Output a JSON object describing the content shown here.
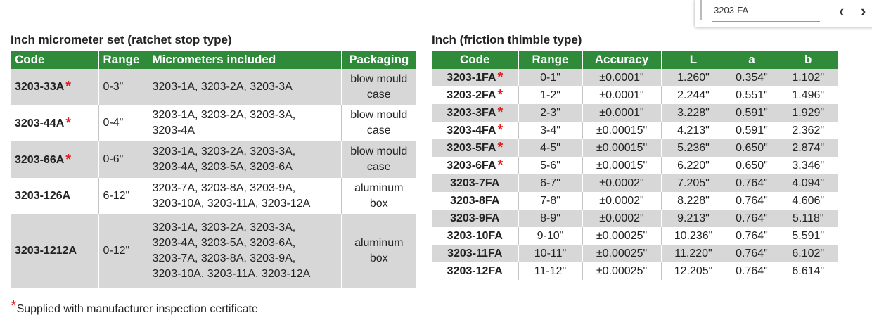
{
  "search": {
    "query": "3203-FA",
    "prev": "‹",
    "next": "›"
  },
  "left_table": {
    "title": "Inch micrometer set (ratchet stop type)",
    "columns": [
      "Code",
      "Range",
      "Micrometers included",
      "Packaging"
    ],
    "rows": [
      {
        "code": "3203-33A",
        "mark": "*",
        "range": "0-3\"",
        "included": [
          "3203-1A, 3203-2A, 3203-3A"
        ],
        "packaging": [
          "blow mould",
          "case"
        ]
      },
      {
        "code": "3203-44A",
        "mark": "*",
        "range": "0-4\"",
        "included": [
          "3203-1A, 3203-2A, 3203-3A,",
          "3203-4A"
        ],
        "packaging": [
          "blow mould",
          "case"
        ]
      },
      {
        "code": "3203-66A",
        "mark": "*",
        "range": "0-6\"",
        "included": [
          "3203-1A, 3203-2A, 3203-3A,",
          "3203-4A, 3203-5A, 3203-6A"
        ],
        "packaging": [
          "blow mould",
          "case"
        ]
      },
      {
        "code": "3203-126A",
        "range": "6-12\"",
        "included": [
          "3203-7A, 3203-8A, 3203-9A,",
          "3203-10A, 3203-11A, 3203-12A"
        ],
        "packaging": [
          "aluminum",
          "box"
        ]
      },
      {
        "code": "3203-1212A",
        "range": "0-12\"",
        "included": [
          "3203-1A, 3203-2A, 3203-3A,",
          "3203-4A, 3203-5A, 3203-6A,",
          "3203-7A, 3203-8A, 3203-9A,",
          "3203-10A, 3203-11A, 3203-12A"
        ],
        "packaging": [
          "aluminum",
          "box"
        ]
      }
    ]
  },
  "right_table": {
    "title": "Inch (friction thimble type)",
    "columns": [
      "Code",
      "Range",
      "Accuracy",
      "L",
      "a",
      "b"
    ],
    "rows": [
      {
        "code": "3203-1FA",
        "mark": "*",
        "range": "0-1\"",
        "accuracy": "±0.0001\"",
        "L": "1.260\"",
        "a": "0.354\"",
        "b": "1.102\""
      },
      {
        "code": "3203-2FA",
        "mark": "*",
        "range": "1-2\"",
        "accuracy": "±0.0001\"",
        "L": "2.244\"",
        "a": "0.551\"",
        "b": "1.496\""
      },
      {
        "code": "3203-3FA",
        "mark": "*",
        "range": "2-3\"",
        "accuracy": "±0.0001\"",
        "L": "3.228\"",
        "a": "0.591\"",
        "b": "1.929\""
      },
      {
        "code": "3203-4FA",
        "mark": "*",
        "range": "3-4\"",
        "accuracy": "±0.00015\"",
        "L": "4.213\"",
        "a": "0.591\"",
        "b": "2.362\""
      },
      {
        "code": "3203-5FA",
        "mark": "*",
        "range": "4-5\"",
        "accuracy": "±0.00015\"",
        "L": "5.236\"",
        "a": "0.650\"",
        "b": "2.874\""
      },
      {
        "code": "3203-6FA",
        "mark": "*",
        "range": "5-6\"",
        "accuracy": "±0.00015\"",
        "L": "6.220\"",
        "a": "0.650\"",
        "b": "3.346\""
      },
      {
        "code": "3203-7FA",
        "range": "6-7\"",
        "accuracy": "±0.0002\"",
        "L": "7.205\"",
        "a": "0.764\"",
        "b": "4.094\""
      },
      {
        "code": "3203-8FA",
        "range": "7-8\"",
        "accuracy": "±0.0002\"",
        "L": "8.228\"",
        "a": "0.764\"",
        "b": "4.606\""
      },
      {
        "code": "3203-9FA",
        "range": "8-9\"",
        "accuracy": "±0.0002\"",
        "L": "9.213\"",
        "a": "0.764\"",
        "b": "5.118\""
      },
      {
        "code": "3203-10FA",
        "range": "9-10\"",
        "accuracy": "±0.00025\"",
        "L": "10.236\"",
        "a": "0.764\"",
        "b": "5.591\""
      },
      {
        "code": "3203-11FA",
        "range": "10-11\"",
        "accuracy": "±0.00025\"",
        "L": "11.220\"",
        "a": "0.764\"",
        "b": "6.102\""
      },
      {
        "code": "3203-12FA",
        "range": "11-12\"",
        "accuracy": "±0.00025\"",
        "L": "12.205\"",
        "a": "0.764\"",
        "b": "6.614\""
      }
    ]
  },
  "footnote": {
    "mark": "*",
    "text": "Supplied with manufacturer inspection certificate"
  }
}
